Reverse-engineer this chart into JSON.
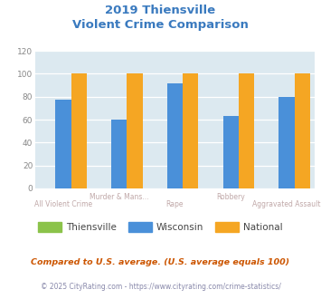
{
  "title_line1": "2019 Thiensville",
  "title_line2": "Violent Crime Comparison",
  "categories": [
    "All Violent Crime",
    "Murder & Mans...",
    "Rape",
    "Robbery",
    "Aggravated Assault"
  ],
  "row1_labels": [
    "",
    "Murder & Mans...",
    "",
    "Robbery",
    ""
  ],
  "row2_labels": [
    "All Violent Crime",
    "",
    "Rape",
    "",
    "Aggravated Assault"
  ],
  "series": {
    "Thiensville": [
      0,
      0,
      0,
      0,
      0
    ],
    "Wisconsin": [
      77,
      60,
      92,
      63,
      80
    ],
    "National": [
      100,
      100,
      100,
      100,
      100
    ]
  },
  "colors": {
    "Thiensville": "#8bc34a",
    "Wisconsin": "#4a90d9",
    "National": "#f5a623"
  },
  "ylim": [
    0,
    120
  ],
  "yticks": [
    0,
    20,
    40,
    60,
    80,
    100,
    120
  ],
  "bg_color": "#dce9f0",
  "title_color": "#3a7abf",
  "axis_label_color": "#c0a8a8",
  "footnote1": "Compared to U.S. average. (U.S. average equals 100)",
  "footnote2": "© 2025 CityRating.com - https://www.cityrating.com/crime-statistics/",
  "footnote1_color": "#cc5500",
  "footnote2_color": "#8888aa",
  "legend_label_color": "#444444"
}
